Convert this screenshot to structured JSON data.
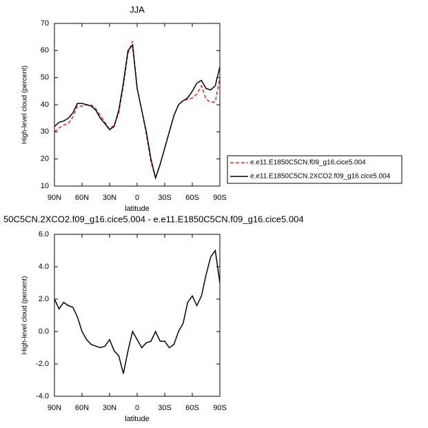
{
  "chart_data": [
    {
      "type": "line",
      "title": "JJA",
      "xlabel": "latitude",
      "ylabel": "High-level cloud (percent)",
      "x": [
        90,
        85,
        80,
        75,
        70,
        65,
        60,
        55,
        50,
        45,
        40,
        35,
        30,
        25,
        20,
        15,
        10,
        5,
        0,
        -5,
        -10,
        -15,
        -20,
        -25,
        -30,
        -35,
        -40,
        -45,
        -50,
        -55,
        -60,
        -65,
        -70,
        -75,
        -80,
        -85,
        -90
      ],
      "xlim": [
        90,
        -90
      ],
      "xticks": [
        {
          "value": 90,
          "label": "90N"
        },
        {
          "value": 60,
          "label": "60N"
        },
        {
          "value": 30,
          "label": "30N"
        },
        0,
        {
          "value": -30,
          "label": "30S"
        },
        {
          "value": -60,
          "label": "60S"
        },
        {
          "value": -90,
          "label": "90S"
        }
      ],
      "ylim": [
        10,
        70
      ],
      "yticks": [
        10,
        20,
        30,
        40,
        50,
        60,
        70
      ],
      "legend": "right",
      "series": [
        {
          "name": "e.e11.E1850C5CN.f09_g16.cice5.004",
          "color": "#e8231f",
          "line_style": "dashed",
          "values": [
            30,
            31.5,
            32.5,
            33,
            35.5,
            39.5,
            39.5,
            40,
            40,
            38.5,
            36,
            33.5,
            31,
            32.5,
            37,
            47,
            59,
            63.5,
            46,
            38,
            29,
            19,
            13,
            18,
            24,
            30,
            36,
            40,
            41.5,
            42,
            42.5,
            44,
            47,
            42,
            41,
            41,
            50
          ]
        },
        {
          "name": "e.e11.E1850C5CN.2XCO2.f09_g16.cice5.004",
          "color": "#000000",
          "line_style": "solid",
          "values": [
            32,
            33.5,
            34,
            35,
            37,
            40.5,
            40.5,
            40,
            39.5,
            38,
            35,
            33,
            30.8,
            32,
            38,
            48,
            60,
            62,
            46,
            38,
            30,
            20,
            13,
            18,
            24,
            30,
            36,
            40,
            41.5,
            42.5,
            45,
            48,
            49,
            46,
            45.5,
            47,
            54
          ]
        }
      ]
    },
    {
      "type": "line",
      "title": "50C5CN.2XCO2.f09_g16.cice5.004 - e.e11.E1850C5CN.f09_g16.cice5.004",
      "xlabel": "latitude",
      "ylabel": "High-level cloud (percent)",
      "x": [
        90,
        85,
        80,
        75,
        70,
        65,
        60,
        55,
        50,
        45,
        40,
        35,
        30,
        25,
        20,
        15,
        10,
        5,
        0,
        -5,
        -10,
        -15,
        -20,
        -25,
        -30,
        -35,
        -40,
        -45,
        -50,
        -55,
        -60,
        -65,
        -70,
        -75,
        -80,
        -85,
        -90
      ],
      "xlim": [
        90,
        -90
      ],
      "xticks": [
        {
          "value": 90,
          "label": "90N"
        },
        {
          "value": 60,
          "label": "60N"
        },
        {
          "value": 30,
          "label": "30N"
        },
        0,
        {
          "value": -30,
          "label": "30S"
        },
        {
          "value": -60,
          "label": "60S"
        },
        {
          "value": -90,
          "label": "90S"
        }
      ],
      "ylim": [
        -4,
        6
      ],
      "yticks": [
        {
          "value": -4,
          "label": "-4.0"
        },
        {
          "value": -2,
          "label": "-2.0"
        },
        {
          "value": 0,
          "label": "0.0"
        },
        {
          "value": 2,
          "label": "2.0"
        },
        {
          "value": 4,
          "label": "4.0"
        },
        {
          "value": 6,
          "label": "6.0"
        }
      ],
      "series": [
        {
          "color": "#000000",
          "line_style": "solid",
          "values": [
            2.0,
            1.4,
            1.8,
            1.6,
            1.5,
            0.9,
            0.0,
            -0.5,
            -0.8,
            -0.9,
            -1.0,
            -0.9,
            -0.5,
            -1.2,
            -1.5,
            -2.6,
            -1.2,
            0.0,
            -0.5,
            -1.0,
            -0.7,
            -0.6,
            0.0,
            -0.6,
            -0.6,
            -1.0,
            -0.8,
            0.0,
            0.5,
            1.8,
            2.2,
            1.6,
            2.2,
            3.5,
            4.6,
            5.0,
            3.0
          ]
        }
      ]
    }
  ]
}
